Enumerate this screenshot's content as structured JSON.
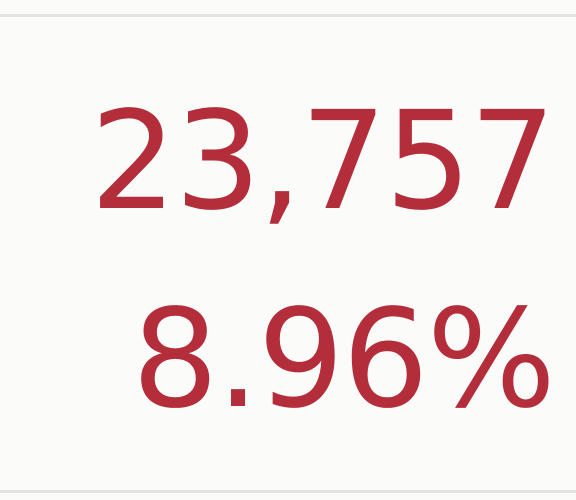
{
  "metric_cell": {
    "count": "23,757",
    "percentage": "8.96%"
  },
  "colors": {
    "value_text": "#b32d3a",
    "cell_background": "#fbfbfa",
    "divider": "#e4e4e2"
  }
}
